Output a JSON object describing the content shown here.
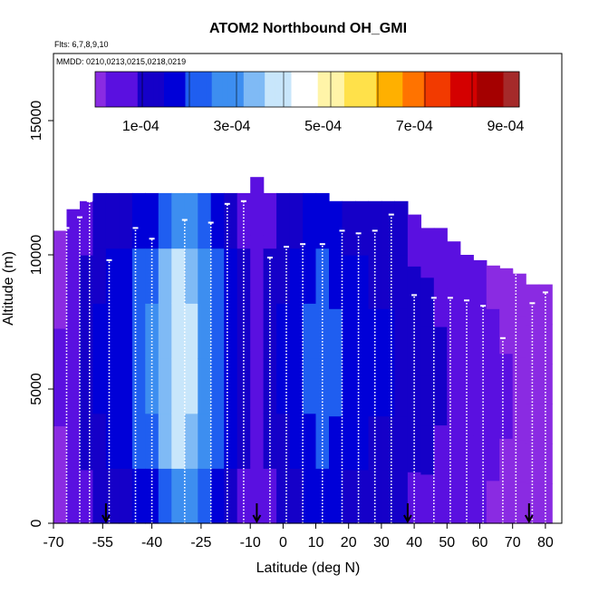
{
  "chart_data": {
    "type": "heatmap",
    "title": "ATOM2 Northbound OH_GMI",
    "subtitle_flights": "Flts: 6,7,8,9,10",
    "subtitle_dates": "MMDD: 0210,0213,0215,0218,0219",
    "xlabel": "Latitude (deg N)",
    "ylabel": "Altitude (m)",
    "xlim": [
      -70,
      85
    ],
    "ylim": [
      0,
      17500
    ],
    "x_ticks": [
      -70,
      -55,
      -40,
      -25,
      -10,
      0,
      10,
      20,
      30,
      40,
      50,
      60,
      70,
      80
    ],
    "x_tick_labels": [
      "-70",
      "-55",
      "-40",
      "-25",
      "-10",
      "0",
      "10",
      "20",
      "30",
      "40",
      "50",
      "60",
      "70",
      "80"
    ],
    "y_ticks": [
      0,
      5000,
      10000,
      15000
    ],
    "y_tick_labels": [
      "0",
      "5000",
      "10000",
      "15000"
    ],
    "colorbar": {
      "min": 0,
      "max": 0.00093,
      "colors": [
        "#8a2be2",
        "#5a10e0",
        "#1500c8",
        "#0000d8",
        "#1f5ef0",
        "#3d8ef0",
        "#7fbaf5",
        "#c8e6fb",
        "#ffffff",
        "#fff4a8",
        "#ffe14a",
        "#ffb000",
        "#ff7300",
        "#f23a00",
        "#d40000",
        "#a40000",
        "#a52a2a"
      ],
      "tick_values": [
        0.0001,
        0.0003,
        0.0005,
        0.0007,
        0.0009
      ],
      "tick_labels": [
        "1e-04",
        "3e-04",
        "5e-04",
        "7e-04",
        "9e-04"
      ]
    },
    "arrow_latitudes": [
      -54,
      -8,
      38,
      75
    ],
    "series": [
      {
        "values": [
          {
            "lat": -68,
            "top": 10900,
            "v": 3e-05
          },
          {
            "lat": -64,
            "top": 11700,
            "v": 8e-05
          },
          {
            "lat": -60,
            "top": 12000,
            "v": 0.00012
          },
          {
            "lat": -56,
            "top": 12300,
            "v": 0.00016
          },
          {
            "lat": -52,
            "top": 12300,
            "v": 0.00018
          },
          {
            "lat": -48,
            "top": 12300,
            "v": 0.0002
          },
          {
            "lat": -44,
            "top": 12300,
            "v": 0.00024
          },
          {
            "lat": -40,
            "top": 12300,
            "v": 0.0003
          },
          {
            "lat": -36,
            "top": 12300,
            "v": 0.00038
          },
          {
            "lat": -32,
            "top": 12300,
            "v": 0.00044
          },
          {
            "lat": -28,
            "top": 12300,
            "v": 0.0004
          },
          {
            "lat": -24,
            "top": 12300,
            "v": 0.00032
          },
          {
            "lat": -20,
            "top": 12300,
            "v": 0.00024
          },
          {
            "lat": -16,
            "top": 12300,
            "v": 0.00018
          },
          {
            "lat": -12,
            "top": 12300,
            "v": 0.00012
          },
          {
            "lat": -8,
            "top": 12900,
            "v": 8e-05
          },
          {
            "lat": -4,
            "top": 12300,
            "v": 0.00012
          },
          {
            "lat": 0,
            "top": 12300,
            "v": 0.00016
          },
          {
            "lat": 4,
            "top": 12300,
            "v": 0.0002
          },
          {
            "lat": 8,
            "top": 12300,
            "v": 0.00022
          },
          {
            "lat": 12,
            "top": 12300,
            "v": 0.00024
          },
          {
            "lat": 16,
            "top": 12000,
            "v": 0.00022
          },
          {
            "lat": 20,
            "top": 12000,
            "v": 0.0002
          },
          {
            "lat": 24,
            "top": 12000,
            "v": 0.00018
          },
          {
            "lat": 28,
            "top": 12000,
            "v": 0.00016
          },
          {
            "lat": 32,
            "top": 12000,
            "v": 0.00015
          },
          {
            "lat": 36,
            "top": 12000,
            "v": 0.00014
          },
          {
            "lat": 40,
            "top": 11500,
            "v": 0.00012
          },
          {
            "lat": 44,
            "top": 11000,
            "v": 0.00011
          },
          {
            "lat": 48,
            "top": 11000,
            "v": 0.0001
          },
          {
            "lat": 52,
            "top": 10500,
            "v": 8e-05
          },
          {
            "lat": 56,
            "top": 10000,
            "v": 6e-05
          },
          {
            "lat": 60,
            "top": 9800,
            "v": 5e-05
          },
          {
            "lat": 64,
            "top": 9600,
            "v": 4e-05
          },
          {
            "lat": 68,
            "top": 9500,
            "v": 3e-05
          },
          {
            "lat": 72,
            "top": 9300,
            "v": 2e-05
          },
          {
            "lat": 76,
            "top": 8900,
            "v": 2e-05
          },
          {
            "lat": 80,
            "top": 8900,
            "v": 1e-05
          }
        ]
      }
    ],
    "flight_track_profiles": [
      {
        "lat": -66,
        "top": 11000
      },
      {
        "lat": -62,
        "top": 11400
      },
      {
        "lat": -59,
        "top": 12000
      },
      {
        "lat": -53,
        "top": 9800
      },
      {
        "lat": -45,
        "top": 11000
      },
      {
        "lat": -40,
        "top": 10600
      },
      {
        "lat": -30,
        "top": 11300
      },
      {
        "lat": -22,
        "top": 11200
      },
      {
        "lat": -17,
        "top": 11900
      },
      {
        "lat": -12,
        "top": 12000
      },
      {
        "lat": -4,
        "top": 9900
      },
      {
        "lat": 1,
        "top": 10300
      },
      {
        "lat": 6,
        "top": 10400
      },
      {
        "lat": 12,
        "top": 10400
      },
      {
        "lat": 18,
        "top": 10900
      },
      {
        "lat": 23,
        "top": 10800
      },
      {
        "lat": 28,
        "top": 10900
      },
      {
        "lat": 33,
        "top": 11500
      },
      {
        "lat": 40,
        "top": 8500
      },
      {
        "lat": 46,
        "top": 8400
      },
      {
        "lat": 51,
        "top": 8400
      },
      {
        "lat": 56,
        "top": 8300
      },
      {
        "lat": 61,
        "top": 8100
      },
      {
        "lat": 67,
        "top": 6900
      },
      {
        "lat": 71,
        "top": 9500
      },
      {
        "lat": 76,
        "top": 8200
      },
      {
        "lat": 80,
        "top": 8600
      }
    ]
  }
}
